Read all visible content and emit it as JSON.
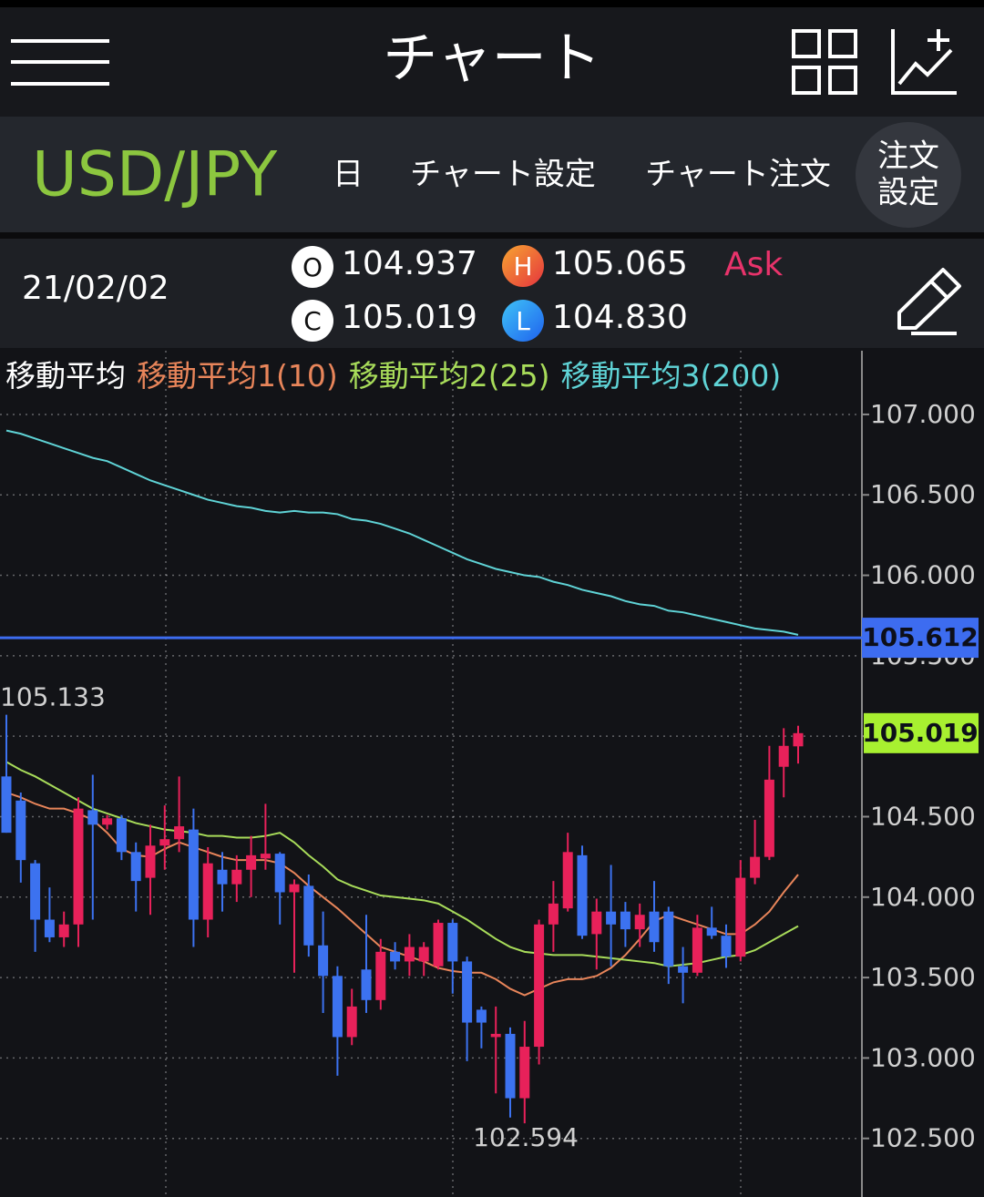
{
  "header": {
    "title": "チャート"
  },
  "toolbar": {
    "symbol": "USD/JPY",
    "period": "日",
    "chart_settings": "チャート設定",
    "chart_order": "チャート注文",
    "order_settings": [
      "注文",
      "設定"
    ]
  },
  "quote": {
    "date": "21/02/02",
    "open": {
      "badge": "O",
      "value": "104.937"
    },
    "high": {
      "badge": "H",
      "value": "105.065"
    },
    "close": {
      "badge": "C",
      "value": "105.019"
    },
    "low": {
      "badge": "L",
      "value": "104.830"
    },
    "side": "Ask"
  },
  "chart_data": {
    "type": "candlestick",
    "legend_title": "移動平均",
    "ylim": [
      102.136,
      107.396
    ],
    "yticks": [
      {
        "value": 102.5,
        "label": "102.500"
      },
      {
        "value": 103,
        "label": "103.000"
      },
      {
        "value": 103.5,
        "label": "103.500"
      },
      {
        "value": 104,
        "label": "104.000"
      },
      {
        "value": 104.5,
        "label": "104.500"
      },
      {
        "value": 105,
        "label": "105.000"
      },
      {
        "value": 105.5,
        "label": "105.500"
      },
      {
        "value": 106,
        "label": "106.000"
      },
      {
        "value": 106.5,
        "label": "106.500"
      },
      {
        "value": 107,
        "label": "107.000"
      }
    ],
    "grid": true,
    "up_color": "#e8215a",
    "down_color": "#3c72f0",
    "candles": {
      "open": [
        104.75,
        104.6,
        104.21,
        103.86,
        103.75,
        103.83,
        104.54,
        104.45,
        104.49,
        104.28,
        104.12,
        104.32,
        104.36,
        104.42,
        103.86,
        104.17,
        104.08,
        104.17,
        104.24,
        104.27,
        104.03,
        104.07,
        103.7,
        103.51,
        103.13,
        103.55,
        103.36,
        103.66,
        103.6,
        103.6,
        103.57,
        103.84,
        103.6,
        103.3,
        103.13,
        103.15,
        102.75,
        103.07,
        103.83,
        103.93,
        104.26,
        103.77,
        103.91,
        103.91,
        103.8,
        103.91,
        103.91,
        103.57,
        103.53,
        103.81,
        103.76,
        103.63,
        104.12,
        104.25,
        104.81,
        104.937
      ],
      "high": [
        105.133,
        104.65,
        104.23,
        104.06,
        103.91,
        104.62,
        104.76,
        104.51,
        104.51,
        104.34,
        104.45,
        104.57,
        104.75,
        104.55,
        104.31,
        104.28,
        104.26,
        104.38,
        104.58,
        104.28,
        104.11,
        104.14,
        103.91,
        103.57,
        103.43,
        103.89,
        103.74,
        103.72,
        103.77,
        103.72,
        103.86,
        103.86,
        103.63,
        103.32,
        103.32,
        103.19,
        103.23,
        103.86,
        104.1,
        104.4,
        104.32,
        103.99,
        104.2,
        103.97,
        103.96,
        104.1,
        103.94,
        103.69,
        103.89,
        103.94,
        103.83,
        104.23,
        104.48,
        104.94,
        105.05,
        105.065
      ],
      "low": [
        104.4,
        104.09,
        103.66,
        103.72,
        103.69,
        103.69,
        103.86,
        104.42,
        104.23,
        103.91,
        103.89,
        104.17,
        104.28,
        103.69,
        103.75,
        103.91,
        103.97,
        104.0,
        104.17,
        103.83,
        103.53,
        103.63,
        103.28,
        102.89,
        103.08,
        103.28,
        103.3,
        103.55,
        103.51,
        103.51,
        103.55,
        103.4,
        102.98,
        103.06,
        102.78,
        102.63,
        102.594,
        102.96,
        103.66,
        103.91,
        103.74,
        103.55,
        103.57,
        103.69,
        103.69,
        103.66,
        103.46,
        103.34,
        103.51,
        103.74,
        103.56,
        103.6,
        104.08,
        104.23,
        104.62,
        104.83
      ],
      "close": [
        104.4,
        104.23,
        103.86,
        103.75,
        103.83,
        104.55,
        104.45,
        104.49,
        104.28,
        104.1,
        104.32,
        104.36,
        104.44,
        103.86,
        104.21,
        104.08,
        104.17,
        104.26,
        104.27,
        104.03,
        104.08,
        103.7,
        103.51,
        103.13,
        103.32,
        103.36,
        103.66,
        103.6,
        103.69,
        103.69,
        103.84,
        103.6,
        103.22,
        103.22,
        103.15,
        102.75,
        103.07,
        103.83,
        103.96,
        104.28,
        103.76,
        103.91,
        103.83,
        103.8,
        103.89,
        103.72,
        103.57,
        103.53,
        103.81,
        103.76,
        103.63,
        104.12,
        104.25,
        104.73,
        104.94,
        105.019
      ]
    },
    "series": [
      {
        "name": "移動平均1(10)",
        "color": "#e8855a",
        "values": [
          104.65,
          104.62,
          104.58,
          104.55,
          104.55,
          104.52,
          104.48,
          104.4,
          104.3,
          104.26,
          104.25,
          104.3,
          104.34,
          104.31,
          104.28,
          104.25,
          104.23,
          104.23,
          104.23,
          104.21,
          104.15,
          104.07,
          104.0,
          103.93,
          103.85,
          103.77,
          103.69,
          103.66,
          103.63,
          103.6,
          103.56,
          103.54,
          103.53,
          103.53,
          103.49,
          103.43,
          103.39,
          103.43,
          103.47,
          103.49,
          103.49,
          103.51,
          103.56,
          103.64,
          103.74,
          103.85,
          103.89,
          103.86,
          103.83,
          103.8,
          103.77,
          103.77,
          103.83,
          103.91,
          104.03,
          104.14
        ]
      },
      {
        "name": "移動平均2(25)",
        "color": "#a8dc5a",
        "values": [
          104.84,
          104.79,
          104.75,
          104.7,
          104.65,
          104.6,
          104.55,
          104.52,
          104.49,
          104.46,
          104.44,
          104.42,
          104.41,
          104.4,
          104.38,
          104.38,
          104.37,
          104.37,
          104.38,
          104.4,
          104.34,
          104.26,
          104.19,
          104.11,
          104.07,
          104.04,
          104.01,
          104.0,
          103.99,
          103.98,
          103.96,
          103.91,
          103.86,
          103.8,
          103.74,
          103.69,
          103.66,
          103.65,
          103.64,
          103.64,
          103.64,
          103.63,
          103.62,
          103.61,
          103.6,
          103.59,
          103.57,
          103.58,
          103.59,
          103.61,
          103.63,
          103.64,
          103.67,
          103.72,
          103.77,
          103.82
        ]
      },
      {
        "name": "移動平均3(200)",
        "color": "#5fd3d6",
        "values": [
          106.9,
          106.88,
          106.85,
          106.82,
          106.79,
          106.76,
          106.73,
          106.71,
          106.67,
          106.63,
          106.59,
          106.56,
          106.53,
          106.5,
          106.47,
          106.45,
          106.43,
          106.42,
          106.4,
          106.39,
          106.4,
          106.39,
          106.39,
          106.38,
          106.35,
          106.34,
          106.32,
          106.29,
          106.26,
          106.22,
          106.18,
          106.14,
          106.1,
          106.07,
          106.04,
          106.02,
          106.0,
          105.99,
          105.96,
          105.94,
          105.91,
          105.89,
          105.87,
          105.84,
          105.82,
          105.81,
          105.78,
          105.77,
          105.75,
          105.73,
          105.71,
          105.69,
          105.67,
          105.66,
          105.65,
          105.63
        ]
      }
    ],
    "ask_line": {
      "value": 105.612,
      "color": "#3d6cf0"
    },
    "last_price": {
      "value": 105.019,
      "color": "#a8f030"
    },
    "high_label": 105.133,
    "low_label": 102.594
  }
}
